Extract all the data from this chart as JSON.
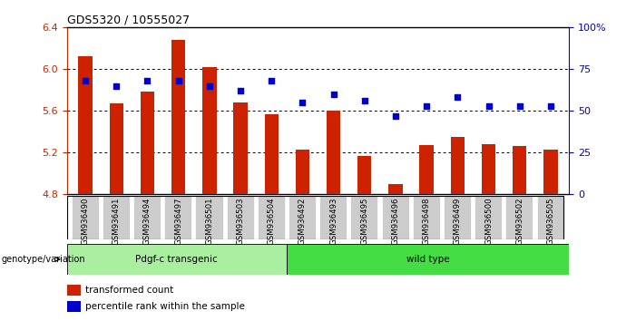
{
  "title": "GDS5320 / 10555027",
  "samples": [
    "GSM936490",
    "GSM936491",
    "GSM936494",
    "GSM936497",
    "GSM936501",
    "GSM936503",
    "GSM936504",
    "GSM936492",
    "GSM936493",
    "GSM936495",
    "GSM936496",
    "GSM936498",
    "GSM936499",
    "GSM936500",
    "GSM936502",
    "GSM936505"
  ],
  "bar_values": [
    6.12,
    5.67,
    5.78,
    6.28,
    6.02,
    5.68,
    5.57,
    5.23,
    5.6,
    5.17,
    4.9,
    5.27,
    5.35,
    5.28,
    5.26,
    5.23
  ],
  "percentile_values": [
    68,
    65,
    68,
    68,
    65,
    62,
    68,
    55,
    60,
    56,
    47,
    53,
    58,
    53,
    53,
    53
  ],
  "bar_bottom": 4.8,
  "ylim_left": [
    4.8,
    6.4
  ],
  "ylim_right": [
    0,
    100
  ],
  "yticks_left": [
    4.8,
    5.2,
    5.6,
    6.0,
    6.4
  ],
  "yticks_right": [
    0,
    25,
    50,
    75,
    100
  ],
  "ytick_labels_right": [
    "0",
    "25",
    "50",
    "75",
    "100%"
  ],
  "bar_color": "#cc2200",
  "dot_color": "#0000cc",
  "group1_label": "Pdgf-c transgenic",
  "group2_label": "wild type",
  "group1_color": "#aaeea0",
  "group2_color": "#44dd44",
  "group1_count": 7,
  "group2_count": 9,
  "xlabel_genotype": "genotype/variation",
  "legend_bar_label": "transformed count",
  "legend_dot_label": "percentile rank within the sample",
  "left_color": "#cc2200",
  "right_color": "#0000cc",
  "tick_label_bg": "#cccccc",
  "bar_width": 0.45
}
